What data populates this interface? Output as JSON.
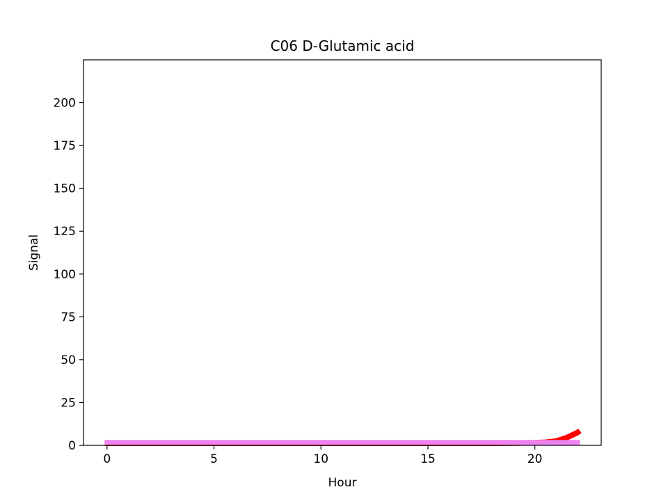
{
  "chart_data": {
    "type": "line",
    "title": "C06 D-Glutamic acid",
    "xlabel": "Hour",
    "ylabel": "Signal",
    "xlim": [
      -1.1,
      23.1
    ],
    "ylim": [
      0,
      225
    ],
    "xticks": [
      0,
      5,
      10,
      15,
      20
    ],
    "yticks": [
      0,
      25,
      50,
      75,
      100,
      125,
      150,
      175,
      200
    ],
    "grid": false,
    "legend": "none",
    "series": [
      {
        "color": "#ff0000",
        "line_weight": "thick",
        "x": [
          -0.1,
          1,
          2,
          4,
          6,
          8,
          10,
          12,
          14,
          16,
          18,
          19,
          20,
          20.5,
          21,
          21.5,
          22,
          22.1
        ],
        "y": [
          1.2,
          1.2,
          1.2,
          1.2,
          1.2,
          1.2,
          1.2,
          1.2,
          1.2,
          1.2,
          1.2,
          1.3,
          1.5,
          1.8,
          2.5,
          4.5,
          7.5,
          8.5
        ]
      },
      {
        "color": "#0000ff",
        "line_weight": "thin",
        "x": [
          -0.1,
          0.3,
          0.6,
          0.9,
          1.2,
          1.6,
          2,
          4,
          6,
          8,
          10,
          12,
          14,
          16,
          18,
          18.8,
          19.5,
          20,
          20.5,
          21,
          21.5,
          22,
          22.1
        ],
        "y": [
          1.8,
          2.2,
          2.5,
          2.6,
          2.4,
          2.0,
          1.8,
          1.8,
          1.8,
          1.8,
          1.8,
          1.8,
          1.8,
          1.8,
          1.8,
          2.0,
          2.2,
          2.1,
          1.9,
          1.8,
          1.8,
          1.8,
          1.8
        ]
      },
      {
        "color": "#ee82ee",
        "line_weight": "thick",
        "x": [
          -0.1,
          2,
          4,
          6,
          8,
          10,
          12,
          14,
          16,
          18,
          20,
          22.1
        ],
        "y": [
          1.5,
          1.5,
          1.5,
          1.5,
          1.5,
          1.5,
          1.5,
          1.5,
          1.5,
          1.5,
          1.5,
          1.5
        ]
      }
    ]
  }
}
